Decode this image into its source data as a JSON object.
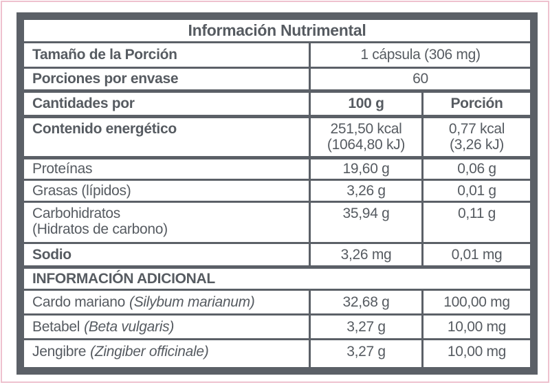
{
  "colors": {
    "frame_pink": "#eec1ce",
    "table_gray": "#5b6067",
    "text_gray": "#565b61",
    "background": "#ffffff"
  },
  "table": {
    "title": "Información Nutrimental",
    "serving": {
      "label": "Tamaño de la Porción",
      "value": "1 cápsula (306 mg)"
    },
    "servings_per_container": {
      "label": "Porciones por envase",
      "value": "60"
    },
    "columns": {
      "label": "Cantidades por",
      "per100_header": "100 g",
      "portion_header": "Porción"
    },
    "energy": {
      "label": "Contenido energético",
      "per100_line1": "251,50 kcal",
      "per100_line2": "(1064,80 kJ)",
      "portion_line1": "0,77 kcal",
      "portion_line2": "(3,26 kJ)"
    },
    "nutrients": [
      {
        "label": "Proteínas",
        "per100": "19,60 g",
        "portion": "0,06 g"
      },
      {
        "label": "Grasas (lípidos)",
        "per100": "3,26 g",
        "portion": "0,01 g"
      },
      {
        "label": "Carbohidratos",
        "label2": "(Hidratos de carbono)",
        "per100": "35,94 g",
        "portion": "0,11 g"
      },
      {
        "label": "Sodio",
        "per100": "3,26 mg",
        "portion": "0,01 mg"
      }
    ],
    "additional": {
      "header": "INFORMACIÓN ADICIONAL",
      "rows": [
        {
          "name": "Cardo mariano",
          "scientific": "(Silybum marianum)",
          "per100": "32,68 g",
          "portion": "100,00 mg"
        },
        {
          "name": "Betabel",
          "scientific": "(Beta vulgaris)",
          "per100": "3,27 g",
          "portion": "10,00 mg"
        },
        {
          "name": "Jengibre",
          "scientific": "(Zingiber officinale)",
          "per100": "3,27 g",
          "portion": "10,00 mg"
        }
      ]
    }
  }
}
